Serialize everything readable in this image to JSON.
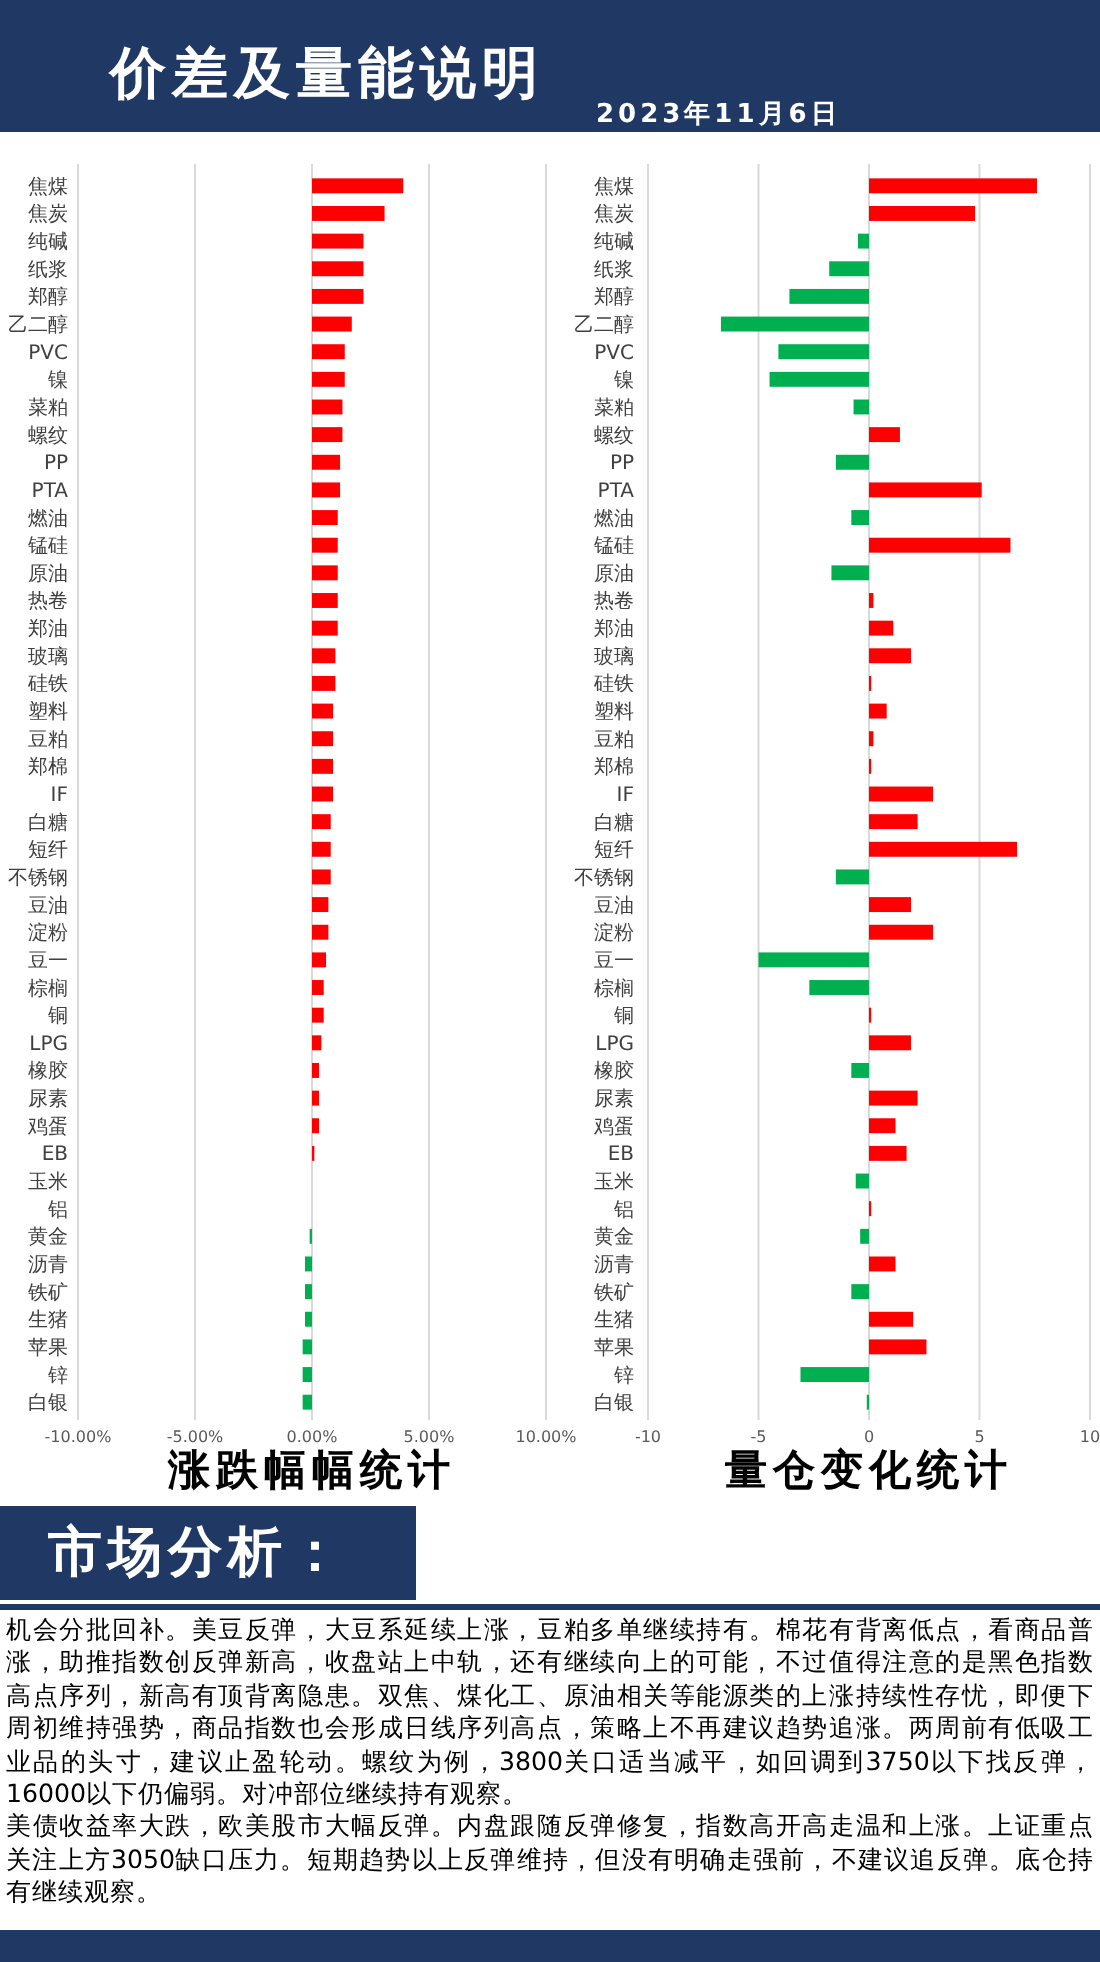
{
  "chart_data": [
    {
      "type": "other",
      "title": "价差及量能说明",
      "subtitle": "2023年11月6日"
    },
    {
      "type": "bar",
      "orientation": "horizontal",
      "xlabel": "涨跌幅幅统计",
      "categories": [
        "焦煤",
        "焦炭",
        "纯碱",
        "纸浆",
        "郑醇",
        "乙二醇",
        "PVC",
        "镍",
        "菜粕",
        "螺纹",
        "PP",
        "PTA",
        "燃油",
        "锰硅",
        "原油",
        "热卷",
        "郑油",
        "玻璃",
        "硅铁",
        "塑料",
        "豆粕",
        "郑棉",
        "IF",
        "白糖",
        "短纤",
        "不锈钢",
        "豆油",
        "淀粉",
        "豆一",
        "棕榈",
        "铜",
        "LPG",
        "橡胶",
        "尿素",
        "鸡蛋",
        "EB",
        "玉米",
        "铝",
        "黄金",
        "沥青",
        "铁矿",
        "生猪",
        "苹果",
        "锌",
        "白银"
      ],
      "values": [
        3.9,
        3.1,
        2.2,
        2.2,
        2.2,
        1.7,
        1.4,
        1.4,
        1.3,
        1.3,
        1.2,
        1.2,
        1.1,
        1.1,
        1.1,
        1.1,
        1.1,
        1.0,
        1.0,
        0.9,
        0.9,
        0.9,
        0.9,
        0.8,
        0.8,
        0.8,
        0.7,
        0.7,
        0.6,
        0.5,
        0.5,
        0.4,
        0.3,
        0.3,
        0.3,
        0.1,
        0,
        0,
        -0.1,
        -0.3,
        -0.3,
        -0.3,
        -0.4,
        -0.4,
        -0.4
      ],
      "colors": [
        "#ff0000",
        "#ff0000",
        "#ff0000",
        "#ff0000",
        "#ff0000",
        "#ff0000",
        "#ff0000",
        "#ff0000",
        "#ff0000",
        "#ff0000",
        "#ff0000",
        "#ff0000",
        "#ff0000",
        "#ff0000",
        "#ff0000",
        "#ff0000",
        "#ff0000",
        "#ff0000",
        "#ff0000",
        "#ff0000",
        "#ff0000",
        "#ff0000",
        "#ff0000",
        "#ff0000",
        "#ff0000",
        "#ff0000",
        "#ff0000",
        "#ff0000",
        "#ff0000",
        "#ff0000",
        "#ff0000",
        "#ff0000",
        "#ff0000",
        "#ff0000",
        "#ff0000",
        "#ff0000",
        "#ff0000",
        "#ff0000",
        "#00b050",
        "#00b050",
        "#00b050",
        "#00b050",
        "#00b050",
        "#00b050",
        "#00b050"
      ],
      "xlim": [
        -10,
        10
      ],
      "xticks": [
        {
          "value": -10,
          "label": "-10.00%"
        },
        {
          "value": -5,
          "label": "-5.00%"
        },
        {
          "value": 0,
          "label": "0.00%"
        },
        {
          "value": 5,
          "label": "5.00%"
        },
        {
          "value": 10,
          "label": "10.00%"
        }
      ],
      "grid": "x"
    },
    {
      "type": "bar",
      "orientation": "horizontal",
      "xlabel": "量仓变化统计",
      "categories": [
        "焦煤",
        "焦炭",
        "纯碱",
        "纸浆",
        "郑醇",
        "乙二醇",
        "PVC",
        "镍",
        "菜粕",
        "螺纹",
        "PP",
        "PTA",
        "燃油",
        "锰硅",
        "原油",
        "热卷",
        "郑油",
        "玻璃",
        "硅铁",
        "塑料",
        "豆粕",
        "郑棉",
        "IF",
        "白糖",
        "短纤",
        "不锈钢",
        "豆油",
        "淀粉",
        "豆一",
        "棕榈",
        "铜",
        "LPG",
        "橡胶",
        "尿素",
        "鸡蛋",
        "EB",
        "玉米",
        "铝",
        "黄金",
        "沥青",
        "铁矿",
        "生猪",
        "苹果",
        "锌",
        "白银"
      ],
      "values": [
        7.6,
        4.8,
        -0.5,
        -1.8,
        -3.6,
        -6.7,
        -4.1,
        -4.5,
        -0.7,
        1.4,
        -1.5,
        5.1,
        -0.8,
        6.4,
        -1.7,
        0.2,
        1.1,
        1.9,
        0.1,
        0.8,
        0.2,
        0.1,
        2.9,
        2.2,
        6.7,
        -1.5,
        1.9,
        2.9,
        -5.0,
        -2.7,
        0.1,
        1.9,
        -0.8,
        2.2,
        1.2,
        1.7,
        -0.6,
        0.1,
        -0.4,
        1.2,
        -0.8,
        2.0,
        2.6,
        -3.1,
        -0.1
      ],
      "colors": [
        "#ff0000",
        "#ff0000",
        "#00b050",
        "#00b050",
        "#00b050",
        "#00b050",
        "#00b050",
        "#00b050",
        "#00b050",
        "#ff0000",
        "#00b050",
        "#ff0000",
        "#00b050",
        "#ff0000",
        "#00b050",
        "#ff0000",
        "#ff0000",
        "#ff0000",
        "#ff0000",
        "#ff0000",
        "#ff0000",
        "#ff0000",
        "#ff0000",
        "#ff0000",
        "#ff0000",
        "#00b050",
        "#ff0000",
        "#ff0000",
        "#00b050",
        "#00b050",
        "#ff0000",
        "#ff0000",
        "#00b050",
        "#ff0000",
        "#ff0000",
        "#ff0000",
        "#00b050",
        "#ff0000",
        "#00b050",
        "#ff0000",
        "#00b050",
        "#ff0000",
        "#ff0000",
        "#00b050",
        "#00b050"
      ],
      "xlim": [
        -10,
        10
      ],
      "xticks": [
        -10,
        -5,
        0,
        5,
        10
      ],
      "grid": "x"
    },
    {
      "type": "other",
      "title": "市场分析：",
      "annotations": [
        "机会分批回补。美豆反弹，大豆系延续上涨，豆粕多单继续持有。棉花有背离低点，看商品普涨，助推指数创反弹新高，收盘站上中轨，还有继续向上的可能，不过值得注意的是黑色指数高点序列，新高有顶背离隐患。双焦、煤化工、原油相关等能源类的上涨持续性存忧，即便下周初维持强势，商品指数也会形成日线序列高点，策略上不再建议趋势追涨。两周前有低吸工业品的头寸，建议止盈轮动。螺纹为例，3800关口适当减平，如回调到3750以下找反弹，16000以下仍偏弱。对冲部位继续持有观察。",
        "美债收益率大跌，欧美股市大幅反弹。内盘跟随反弹修复，指数高开高走温和上涨。上证重点关注上方3050缺口压力。短期趋势以上反弹维持，但没有明确走强前，不建议追反弹。底仓持有继续观察。"
      ]
    }
  ]
}
